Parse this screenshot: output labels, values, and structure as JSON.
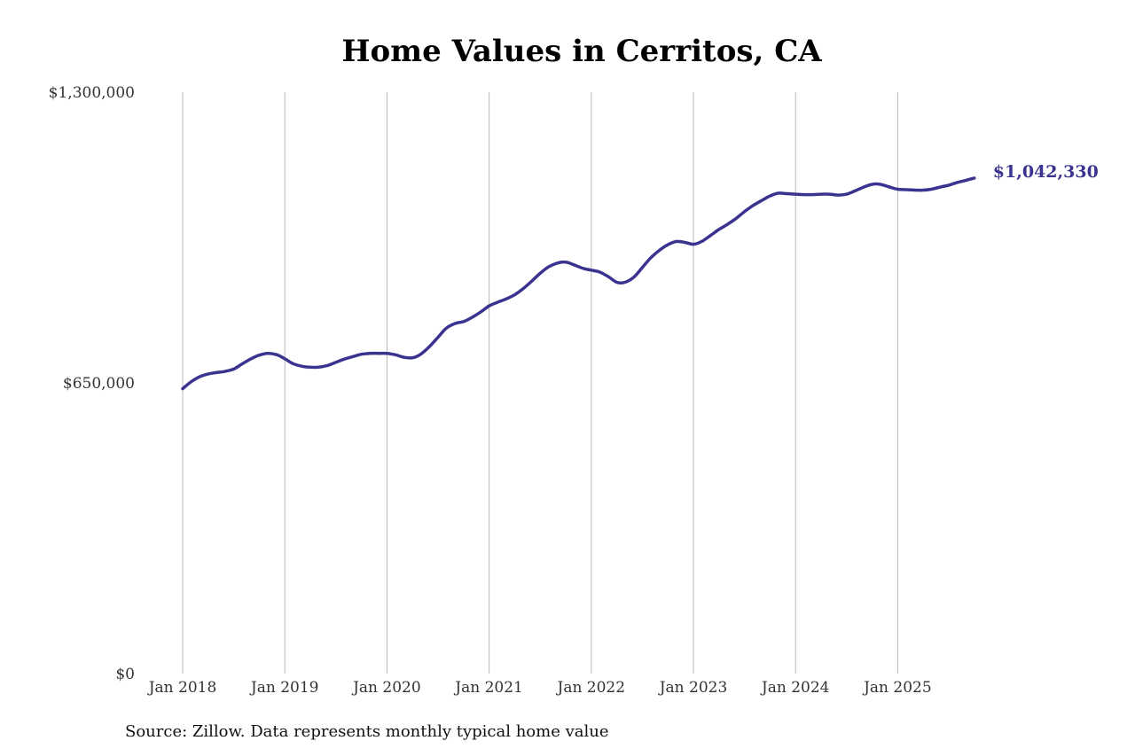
{
  "chart_data": {
    "type": "line",
    "title": "Home Values in Cerritos, CA",
    "xlabel": "",
    "ylabel": "",
    "ylim": [
      0,
      1300000
    ],
    "y_ticks": [
      {
        "value": 0,
        "label": "$0"
      },
      {
        "value": 650000,
        "label": "$650,000"
      },
      {
        "value": 1300000,
        "label": "$1,300,000"
      }
    ],
    "x_ticks": [
      {
        "value": 2018.0,
        "label": "Jan 2018"
      },
      {
        "value": 2019.0,
        "label": "Jan 2019"
      },
      {
        "value": 2020.0,
        "label": "Jan 2020"
      },
      {
        "value": 2021.0,
        "label": "Jan 2021"
      },
      {
        "value": 2022.0,
        "label": "Jan 2022"
      },
      {
        "value": 2023.0,
        "label": "Jan 2023"
      },
      {
        "value": 2024.0,
        "label": "Jan 2024"
      },
      {
        "value": 2025.0,
        "label": "Jan 2025"
      }
    ],
    "grid": {
      "vertical": true,
      "horizontal": false
    },
    "line_color": "#3a3390",
    "series": [
      {
        "x": [
          2018.0,
          2018.08,
          2018.17,
          2018.25,
          2018.33,
          2018.42,
          2018.5,
          2018.58,
          2018.67,
          2018.75,
          2018.83,
          2018.92,
          2019.0,
          2019.08,
          2019.17,
          2019.25,
          2019.33,
          2019.42,
          2019.5,
          2019.58,
          2019.67,
          2019.75,
          2019.83,
          2019.92,
          2020.0,
          2020.08,
          2020.17,
          2020.25,
          2020.33,
          2020.42,
          2020.5,
          2020.58,
          2020.67,
          2020.75,
          2020.83,
          2020.92,
          2021.0,
          2021.08,
          2021.17,
          2021.25,
          2021.33,
          2021.42,
          2021.5,
          2021.58,
          2021.67,
          2021.75,
          2021.83,
          2021.92,
          2022.0,
          2022.08,
          2022.17,
          2022.25,
          2022.33,
          2022.42,
          2022.5,
          2022.58,
          2022.67,
          2022.75,
          2022.83,
          2022.92,
          2023.0,
          2023.08,
          2023.17,
          2023.25,
          2023.33,
          2023.42,
          2023.5,
          2023.58,
          2023.67,
          2023.75,
          2023.83,
          2023.92,
          2024.0,
          2024.08,
          2024.17,
          2024.25,
          2024.33,
          2024.42,
          2024.5,
          2024.58,
          2024.67,
          2024.75,
          2024.83,
          2024.92,
          2025.0,
          2025.08,
          2025.17,
          2025.25,
          2025.33,
          2025.42,
          2025.5,
          2025.58,
          2025.67,
          2025.75,
          2025.83
        ],
        "values": [
          637000,
          652000,
          664000,
          670000,
          673000,
          676000,
          681000,
          692000,
          704000,
          712000,
          716000,
          713000,
          704000,
          693000,
          687000,
          685000,
          685000,
          689000,
          696000,
          703000,
          709000,
          714000,
          716000,
          716000,
          716000,
          713000,
          707000,
          706000,
          714000,
          732000,
          752000,
          772000,
          783000,
          787000,
          796000,
          809000,
          822000,
          830000,
          838000,
          847000,
          860000,
          878000,
          895000,
          909000,
          918000,
          920000,
          914000,
          906000,
          902000,
          898000,
          887000,
          875000,
          875000,
          887000,
          908000,
          929000,
          947000,
          959000,
          966000,
          964000,
          960000,
          966000,
          980000,
          993000,
          1004000,
          1018000,
          1033000,
          1046000,
          1058000,
          1068000,
          1074000,
          1073000,
          1072000,
          1071000,
          1071000,
          1072000,
          1072000,
          1070000,
          1072000,
          1079000,
          1088000,
          1094000,
          1094000,
          1088000,
          1083000,
          1082000,
          1081000,
          1081000,
          1083000,
          1088000,
          1092000,
          1098000,
          1103000,
          1108000,
          1042330
        ]
      }
    ],
    "end_label": "$1,042,330",
    "source": "Source: Zillow. Data represents monthly typical home value"
  }
}
